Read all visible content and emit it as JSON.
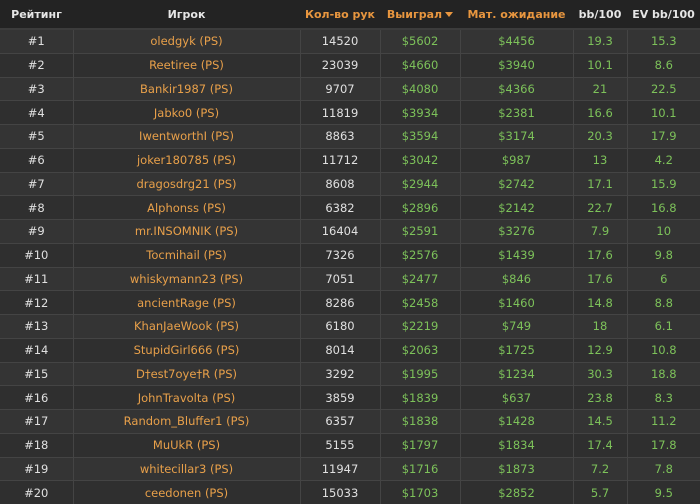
{
  "colors": {
    "header_bg": "#232323",
    "player": "#e8a04a",
    "money": "#7dc25a",
    "sort_header": "#e8963f"
  },
  "headers": {
    "rank": "Рейтинг",
    "player": "Игрок",
    "hands": "Кол-во рук",
    "won": "Выиграл",
    "ev": "Мат. ожидание",
    "bb": "bb/100",
    "evbb": "EV bb/100"
  },
  "sort_icon": "caret-down-icon",
  "rows": [
    [
      "#1",
      "oledgyk (PS)",
      "14520",
      "$5602",
      "$4456",
      "19.3",
      "15.3"
    ],
    [
      "#2",
      "Reetiree (PS)",
      "23039",
      "$4660",
      "$3940",
      "10.1",
      "8.6"
    ],
    [
      "#3",
      "Bankir1987 (PS)",
      "9707",
      "$4080",
      "$4366",
      "21",
      "22.5"
    ],
    [
      "#4",
      "Jabko0 (PS)",
      "11819",
      "$3934",
      "$2381",
      "16.6",
      "10.1"
    ],
    [
      "#5",
      "IwentworthI (PS)",
      "8863",
      "$3594",
      "$3174",
      "20.3",
      "17.9"
    ],
    [
      "#6",
      "joker180785 (PS)",
      "11712",
      "$3042",
      "$987",
      "13",
      "4.2"
    ],
    [
      "#7",
      "dragosdrg21 (PS)",
      "8608",
      "$2944",
      "$2742",
      "17.1",
      "15.9"
    ],
    [
      "#8",
      "Alphonss (PS)",
      "6382",
      "$2896",
      "$2142",
      "22.7",
      "16.8"
    ],
    [
      "#9",
      "mr.INSOMNIK (PS)",
      "16404",
      "$2591",
      "$3276",
      "7.9",
      "10"
    ],
    [
      "#10",
      "Tocmihail (PS)",
      "7326",
      "$2576",
      "$1439",
      "17.6",
      "9.8"
    ],
    [
      "#11",
      "whiskymann23 (PS)",
      "7051",
      "$2477",
      "$846",
      "17.6",
      "6"
    ],
    [
      "#12",
      "ancientRage (PS)",
      "8286",
      "$2458",
      "$1460",
      "14.8",
      "8.8"
    ],
    [
      "#13",
      "KhanJaeWook (PS)",
      "6180",
      "$2219",
      "$749",
      "18",
      "6.1"
    ],
    [
      "#14",
      "StupidGirl666 (PS)",
      "8014",
      "$2063",
      "$1725",
      "12.9",
      "10.8"
    ],
    [
      "#15",
      "D†est7oye†R (PS)",
      "3292",
      "$1995",
      "$1234",
      "30.3",
      "18.8"
    ],
    [
      "#16",
      "JohnTravolta (PS)",
      "3859",
      "$1839",
      "$637",
      "23.8",
      "8.3"
    ],
    [
      "#17",
      "Random_Bluffer1 (PS)",
      "6357",
      "$1838",
      "$1428",
      "14.5",
      "11.2"
    ],
    [
      "#18",
      "MuUkR (PS)",
      "5155",
      "$1797",
      "$1834",
      "17.4",
      "17.8"
    ],
    [
      "#19",
      "whitecillar3 (PS)",
      "11947",
      "$1716",
      "$1873",
      "7.2",
      "7.8"
    ],
    [
      "#20",
      "ceedonen (PS)",
      "15033",
      "$1703",
      "$2852",
      "5.7",
      "9.5"
    ]
  ]
}
